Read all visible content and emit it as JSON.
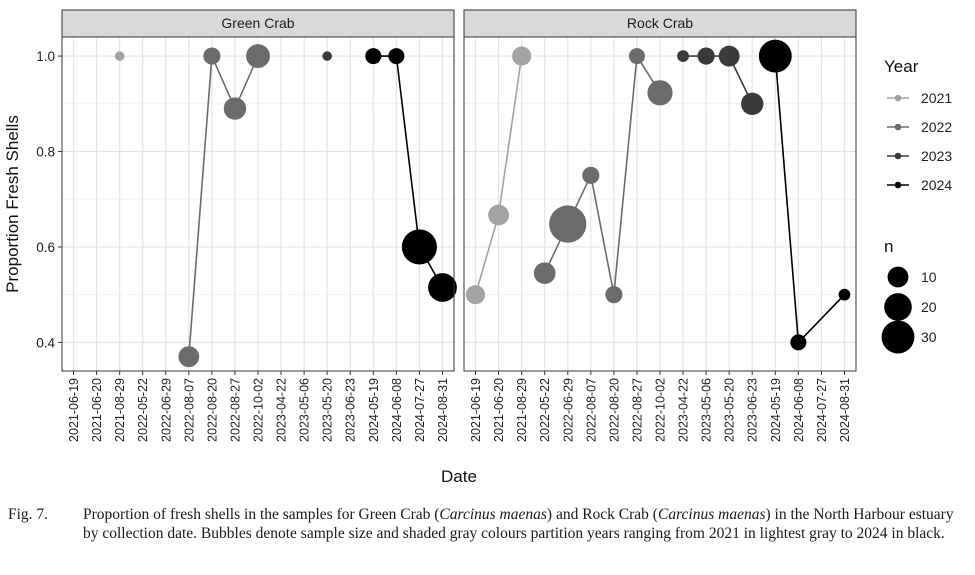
{
  "chart_data": {
    "type": "scatter",
    "ylabel": "Proportion Fresh Shells",
    "xlabel": "Date",
    "ylim": [
      0.34,
      1.04
    ],
    "yticks": [
      "0.4",
      "0.6",
      "0.8",
      "1.0"
    ],
    "grid": true,
    "legend_position": "right",
    "dates": [
      "2021-06-19",
      "2021-06-20",
      "2021-08-29",
      "2022-05-22",
      "2022-06-29",
      "2022-08-07",
      "2022-08-20",
      "2022-08-27",
      "2022-10-02",
      "2023-04-22",
      "2023-05-06",
      "2023-05-20",
      "2023-06-23",
      "2024-05-19",
      "2024-06-08",
      "2024-07-27",
      "2024-08-31"
    ],
    "year_legend": {
      "title": "Year",
      "entries": [
        {
          "label": "2021",
          "color": "#a3a3a3"
        },
        {
          "label": "2022",
          "color": "#6b6b6b"
        },
        {
          "label": "2023",
          "color": "#3a3a3a"
        },
        {
          "label": "2024",
          "color": "#000000"
        }
      ]
    },
    "size_legend": {
      "title": "n",
      "entries": [
        {
          "label": "10",
          "n": 10
        },
        {
          "label": "20",
          "n": 20
        },
        {
          "label": "30",
          "n": 30
        }
      ]
    },
    "panels": [
      {
        "title": "Green Crab",
        "points": [
          {
            "date": "2021-08-29",
            "y": 1.0,
            "year": "2021",
            "n": 1
          },
          {
            "date": "2022-08-07",
            "y": 0.37,
            "year": "2022",
            "n": 10
          },
          {
            "date": "2022-08-20",
            "y": 1.0,
            "year": "2022",
            "n": 6
          },
          {
            "date": "2022-08-27",
            "y": 0.89,
            "year": "2022",
            "n": 12
          },
          {
            "date": "2022-10-02",
            "y": 1.0,
            "year": "2022",
            "n": 14
          },
          {
            "date": "2023-05-20",
            "y": 1.0,
            "year": "2023",
            "n": 1
          },
          {
            "date": "2024-05-19",
            "y": 1.0,
            "year": "2024",
            "n": 5
          },
          {
            "date": "2024-06-08",
            "y": 1.0,
            "year": "2024",
            "n": 5
          },
          {
            "date": "2024-07-27",
            "y": 0.6,
            "year": "2024",
            "n": 35
          },
          {
            "date": "2024-08-31",
            "y": 0.515,
            "year": "2024",
            "n": 22
          }
        ]
      },
      {
        "title": "Rock Crab",
        "points": [
          {
            "date": "2021-06-19",
            "y": 0.5,
            "year": "2021",
            "n": 8
          },
          {
            "date": "2021-06-20",
            "y": 0.667,
            "year": "2021",
            "n": 10
          },
          {
            "date": "2021-08-29",
            "y": 1.0,
            "year": "2021",
            "n": 8
          },
          {
            "date": "2022-05-22",
            "y": 0.545,
            "year": "2022",
            "n": 11
          },
          {
            "date": "2022-06-29",
            "y": 0.648,
            "year": "2022",
            "n": 40
          },
          {
            "date": "2022-08-07",
            "y": 0.75,
            "year": "2022",
            "n": 6
          },
          {
            "date": "2022-08-20",
            "y": 0.5,
            "year": "2022",
            "n": 6
          },
          {
            "date": "2022-08-27",
            "y": 1.0,
            "year": "2022",
            "n": 5
          },
          {
            "date": "2022-10-02",
            "y": 0.923,
            "year": "2022",
            "n": 16
          },
          {
            "date": "2023-04-22",
            "y": 1.0,
            "year": "2023",
            "n": 2
          },
          {
            "date": "2023-05-06",
            "y": 1.0,
            "year": "2023",
            "n": 6
          },
          {
            "date": "2023-05-20",
            "y": 1.0,
            "year": "2023",
            "n": 10
          },
          {
            "date": "2023-06-23",
            "y": 0.9,
            "year": "2023",
            "n": 12
          },
          {
            "date": "2024-05-19",
            "y": 1.0,
            "year": "2024",
            "n": 30
          },
          {
            "date": "2024-06-08",
            "y": 0.4,
            "year": "2024",
            "n": 5
          },
          {
            "date": "2024-08-31",
            "y": 0.5,
            "year": "2024",
            "n": 2
          }
        ]
      }
    ]
  },
  "caption": {
    "label": "Fig. 7.",
    "p1": "Proportion of fresh shells in the samples for Green Crab (",
    "species1": "Carcinus maenas",
    "p2": ") and Rock Crab (",
    "species2": "Carcinus maenas",
    "p3": ") in the North Harbour estuary by collection date. Bubbles denote sample size and shaded gray colours partition years ranging from 2021 in lightest gray to 2024 in black."
  }
}
